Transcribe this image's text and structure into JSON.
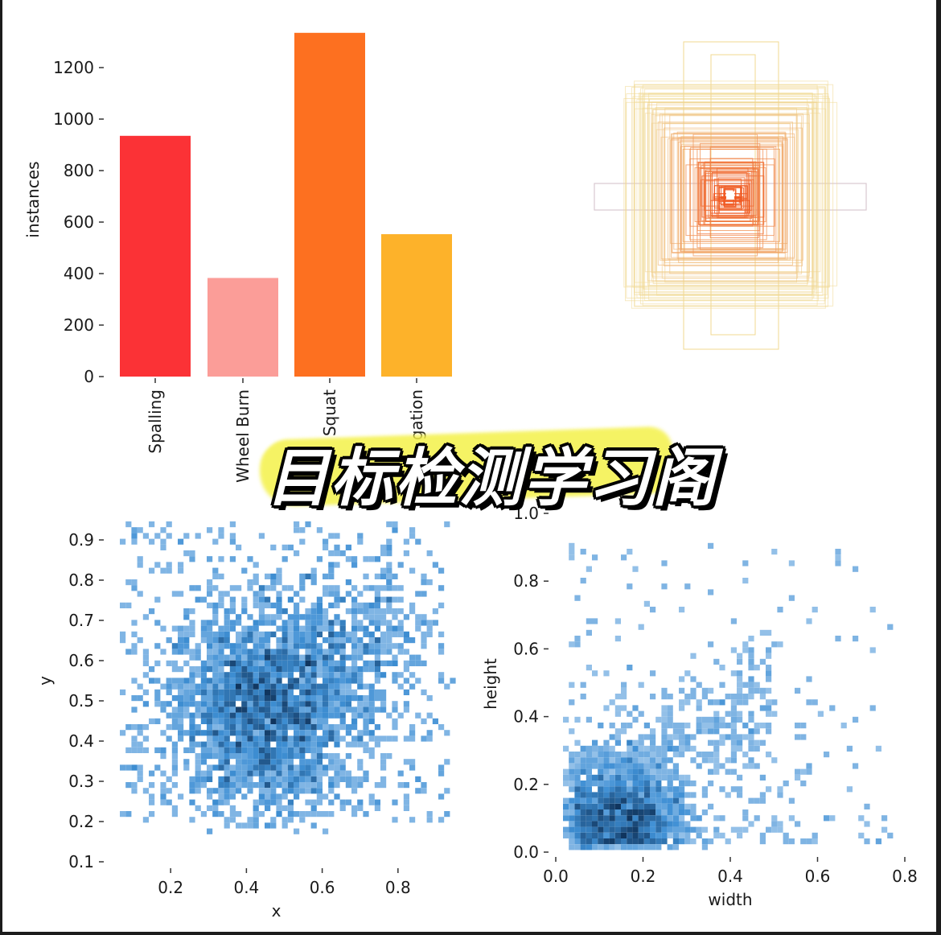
{
  "watermark_text": "目标检测学习阁",
  "colors": {
    "blue_light": "#a6cbee",
    "blue_mid": "#3e8fd4",
    "blue_dark": "#10406e",
    "box_outer": "#f0d892",
    "box_inner": "#f0551e"
  },
  "chart_data": [
    {
      "type": "bar",
      "ylabel": "instances",
      "ylim": [
        0,
        1300
      ],
      "yticks": [
        "0",
        "200",
        "400",
        "600",
        "800",
        "1000",
        "1200"
      ],
      "categories": [
        "Spalling",
        "Wheel Burn",
        "Squat",
        "gation"
      ],
      "values": [
        935,
        383,
        1335,
        553
      ],
      "bar_colors": [
        "#fb3236",
        "#fb9d98",
        "#fd7020",
        "#fdb22a"
      ]
    },
    {
      "type": "box-overlay",
      "title": "",
      "description_values": {
        "center_x": 0.5,
        "center_y": 0.5
      },
      "outer_color": "#f0d892",
      "inner_color": "#f0551e",
      "box_count": 110
    },
    {
      "type": "heatmap",
      "xlabel": "x",
      "ylabel": "y",
      "xlim": [
        0.05,
        0.95
      ],
      "ylim": [
        0.1,
        0.95
      ],
      "xticks": [
        "0.2",
        "0.4",
        "0.6",
        "0.8"
      ],
      "yticks": [
        "0.1",
        "0.2",
        "0.3",
        "0.4",
        "0.5",
        "0.6",
        "0.7",
        "0.8",
        "0.9"
      ],
      "center": [
        0.44,
        0.48
      ]
    },
    {
      "type": "heatmap",
      "xlabel": "width",
      "ylabel": "height",
      "xlim": [
        0.0,
        0.8
      ],
      "ylim": [
        0.0,
        1.0
      ],
      "xticks": [
        "0.0",
        "0.2",
        "0.4",
        "0.6",
        "0.8"
      ],
      "yticks": [
        "0.0",
        "0.2",
        "0.4",
        "0.6",
        "0.8",
        "1.0"
      ],
      "center": [
        0.14,
        0.09
      ]
    }
  ]
}
